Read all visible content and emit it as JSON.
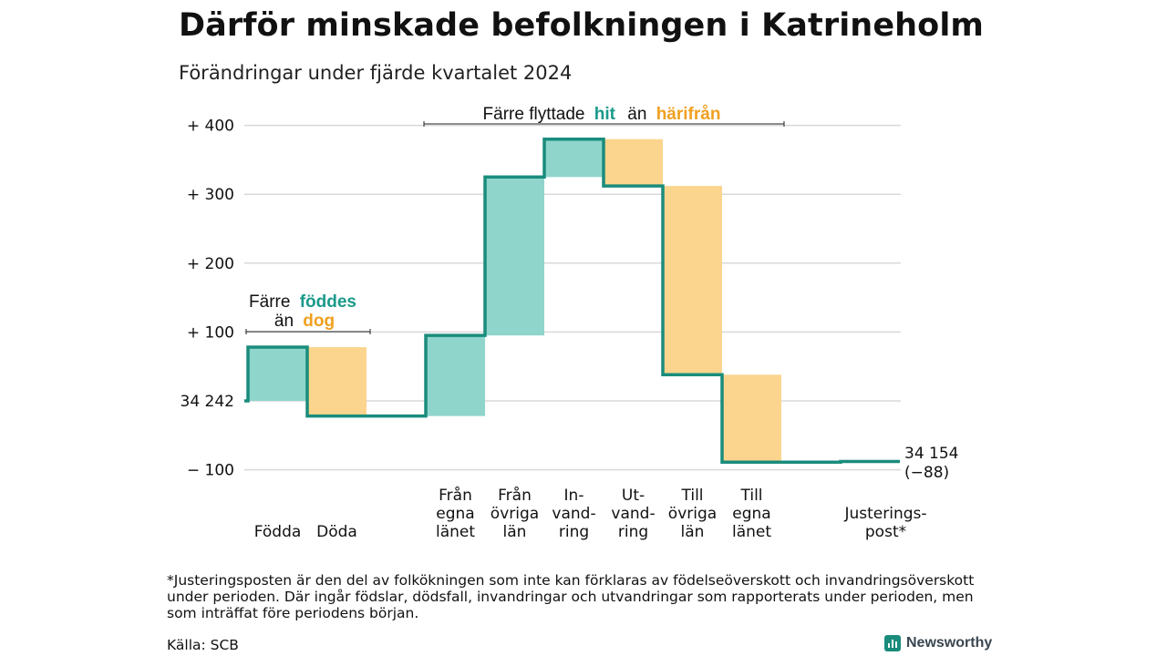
{
  "header": {
    "title": "Därför minskade befolkningen i Katrineholm",
    "subtitle": "Förändringar under fjärde kvartalet 2024"
  },
  "chart_data": {
    "type": "waterfall",
    "baseline": 34242,
    "y_ticks": [
      {
        "value": 400,
        "label": "+ 400"
      },
      {
        "value": 300,
        "label": "+ 300"
      },
      {
        "value": 200,
        "label": "+ 200"
      },
      {
        "value": 100,
        "label": "+ 100"
      },
      {
        "value": 0,
        "label": "34 242"
      },
      {
        "value": -100,
        "label": "− 100"
      }
    ],
    "ylim": [
      -100,
      400
    ],
    "steps": [
      {
        "name": "Födda",
        "label_lines": [
          "Födda"
        ],
        "start": 0,
        "end": 78,
        "kind": "in"
      },
      {
        "name": "Döda",
        "label_lines": [
          "Döda"
        ],
        "start": 78,
        "end": -22,
        "kind": "out"
      },
      {
        "name": "Från egna länet",
        "label_lines": [
          "Från",
          "egna",
          "länet"
        ],
        "start": -22,
        "end": 95,
        "kind": "in"
      },
      {
        "name": "Från övriga län",
        "label_lines": [
          "Från",
          "övriga",
          "län"
        ],
        "start": 95,
        "end": 325,
        "kind": "in"
      },
      {
        "name": "Invandring",
        "label_lines": [
          "In-",
          "vand-",
          "ring"
        ],
        "start": 325,
        "end": 380,
        "kind": "in"
      },
      {
        "name": "Utvandring",
        "label_lines": [
          "Ut-",
          "vand-",
          "ring"
        ],
        "start": 380,
        "end": 312,
        "kind": "out"
      },
      {
        "name": "Till övriga län",
        "label_lines": [
          "Till",
          "övriga",
          "län"
        ],
        "start": 312,
        "end": 38,
        "kind": "out"
      },
      {
        "name": "Till egna länet",
        "label_lines": [
          "Till",
          "egna",
          "länet"
        ],
        "start": 38,
        "end": -89,
        "kind": "out"
      },
      {
        "name": "Justeringspost*",
        "label_lines": [
          "Justerings-",
          "post*"
        ],
        "start": -89,
        "end": -88,
        "kind": "adjust"
      }
    ],
    "end_label": {
      "line1": "34 154",
      "line2": "(−88)"
    },
    "annotations": [
      {
        "id": "births",
        "line1": "Färre",
        "highlight1": "föddes",
        "line2": "än",
        "highlight2": "dog"
      },
      {
        "id": "moves",
        "line1": "Färre flyttade",
        "highlight1": "hit",
        "line2": "än",
        "highlight2": "härifrån"
      }
    ],
    "colors": {
      "in": "#8fd5cc",
      "out": "#fbd58e",
      "line": "#1a8c7c",
      "teal_text": "#1a9a8a",
      "orange_text": "#f0a020",
      "grid": "#d9d9d9"
    }
  },
  "footnote": "*Justeringsposten är den del av folkökningen som inte kan förklaras av födelseöverskott och invandringsöverskott under perioden. Där ingår födslar, dödsfall, invandringar och utvandringar som rapporterats under perioden, men som inträffat före periodens början.",
  "source": "Källa: SCB",
  "brand": {
    "name": "Newsworthy",
    "icon": "newsworthy-logo-icon"
  }
}
